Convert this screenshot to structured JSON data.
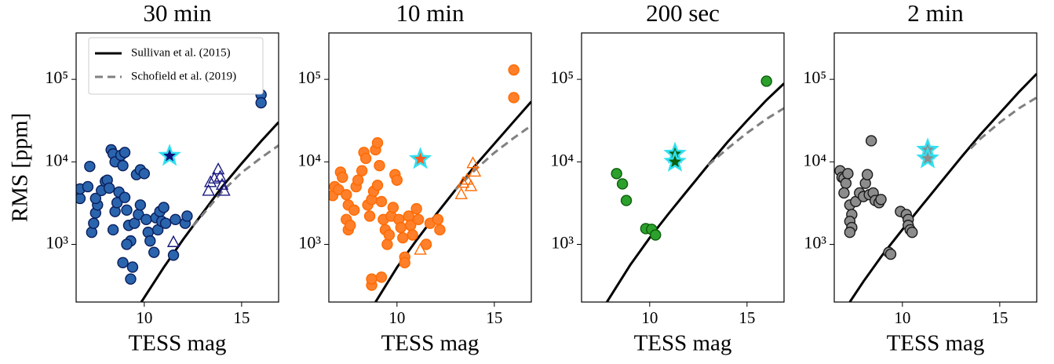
{
  "chart_data": [
    {
      "type": "scatter",
      "title": "30 min",
      "xlabel": "TESS mag",
      "ylabel": "RMS [ppm]",
      "xlim": [
        6.5,
        16.9
      ],
      "ylim": [
        200,
        365000
      ],
      "log_y": true,
      "xticks": [
        10,
        15
      ],
      "yticks": [
        {
          "value": 1000,
          "label": "10³"
        },
        {
          "value": 10000,
          "label": "10⁴"
        },
        {
          "value": 100000,
          "label": "10⁵"
        }
      ],
      "legend": "upper left",
      "series": [
        {
          "name": "Sullivan et al. (2015)",
          "type": "line",
          "color": "#000000",
          "dashed": false,
          "x": [
            9.85,
            11,
            12,
            13,
            14,
            15,
            16,
            16.9
          ],
          "values": [
            200,
            525,
            1150,
            2400,
            5000,
            9550,
            17800,
            30200
          ]
        },
        {
          "name": "Schofield et al. (2019)",
          "type": "line",
          "color": "#808080",
          "dashed": true,
          "x": [
            12.5,
            13,
            14,
            15,
            16,
            16.9
          ],
          "values": [
            1660,
            2290,
            4370,
            7410,
            11200,
            15800
          ]
        },
        {
          "type": "scatter",
          "marker": "circle",
          "color": "#2a64ad",
          "edge": "#0a1e5c",
          "x": [
            6.7,
            6.7,
            7.1,
            7.2,
            7.3,
            7.4,
            7.5,
            7.6,
            7.5,
            7.8,
            8.0,
            8.1,
            8.2,
            8.3,
            8.4,
            8.5,
            8.5,
            8.4,
            8.6,
            8.7,
            8.8,
            8.9,
            9.0,
            9.0,
            9.1,
            9.2,
            9.3,
            9.4,
            9.3,
            8.9,
            9.1,
            9.5,
            9.7,
            9.8,
            9.6,
            9.8,
            10.0,
            10.1,
            10.2,
            10.3,
            10.5,
            10.6,
            10.7,
            10.8,
            10.9,
            11.0,
            11.1,
            11.5,
            11.6,
            12.1,
            12.2,
            16.0,
            16.0
          ],
          "values": [
            3600,
            4700,
            5000,
            8800,
            1400,
            1800,
            2400,
            3000,
            3600,
            4500,
            5800,
            6000,
            4800,
            14000,
            12500,
            10000,
            2500,
            1500,
            3200,
            4300,
            12000,
            9000,
            13000,
            3700,
            2600,
            1700,
            1100,
            530,
            380,
            600,
            1000,
            1800,
            2300,
            3000,
            7000,
            8000,
            7200,
            2000,
            1400,
            1100,
            800,
            2100,
            1500,
            2500,
            1900,
            2800,
            1800,
            740,
            2000,
            1800,
            2200,
            65000,
            52000
          ]
        },
        {
          "type": "scatter",
          "marker": "triangle",
          "color": "none",
          "edge": "#1a1a80",
          "x": [
            11.5,
            13.3,
            13.4,
            13.8,
            13.9,
            14.0,
            14.1,
            13.6
          ],
          "values": [
            1050,
            4400,
            5600,
            8000,
            6500,
            5200,
            4400,
            6200
          ]
        },
        {
          "type": "scatter",
          "marker": "star",
          "color": "#10107a",
          "edge": "#30e0f0",
          "x": [
            11.3
          ],
          "values": [
            11800
          ]
        }
      ]
    },
    {
      "type": "scatter",
      "title": "10 min",
      "xlabel": "TESS mag",
      "xlim": [
        6.5,
        16.9
      ],
      "ylim": [
        200,
        365000
      ],
      "log_y": true,
      "xticks": [
        10,
        15
      ],
      "yticks": [
        {
          "value": 1000,
          "label": "10³"
        },
        {
          "value": 10000,
          "label": "10⁴"
        },
        {
          "value": 100000,
          "label": "10⁵"
        }
      ],
      "series": [
        {
          "type": "line",
          "color": "#000000",
          "dashed": false,
          "x": [
            8.9,
            10,
            11,
            12,
            13,
            14,
            15,
            16,
            16.9
          ],
          "values": [
            200,
            525,
            1120,
            2290,
            4570,
            8910,
            16600,
            30900,
            53700
          ]
        },
        {
          "type": "line",
          "color": "#808080",
          "dashed": true,
          "x": [
            13,
            14,
            15,
            16,
            16.9
          ],
          "values": [
            4570,
            7940,
            12900,
            19500,
            27500
          ]
        },
        {
          "type": "scatter",
          "marker": "circle",
          "color": "#ff7f2a",
          "edge": "#ff6a00",
          "x": [
            6.7,
            6.8,
            7.0,
            7.1,
            7.2,
            7.4,
            7.5,
            7.4,
            7.5,
            7.6,
            7.8,
            7.9,
            8.0,
            8.2,
            8.3,
            8.4,
            8.5,
            8.6,
            8.7,
            8.8,
            8.9,
            9.0,
            9.1,
            9.0,
            9.2,
            9.3,
            9.4,
            8.7,
            8.7,
            9.2,
            9.5,
            9.6,
            9.7,
            9.8,
            9.9,
            10.0,
            10.1,
            10.2,
            10.3,
            10.4,
            10.4,
            10.6,
            10.7,
            10.8,
            11.0,
            11.1,
            11.5,
            11.7,
            12.1,
            12.2,
            16.0,
            16.0
          ],
          "values": [
            3900,
            5000,
            4600,
            7500,
            6500,
            4000,
            3000,
            2000,
            1500,
            1700,
            2600,
            5000,
            6000,
            7800,
            13000,
            11000,
            3000,
            2200,
            3500,
            4400,
            14000,
            17000,
            9000,
            5200,
            3300,
            2000,
            1500,
            320,
            380,
            400,
            1000,
            1300,
            2200,
            2800,
            7000,
            6000,
            2000,
            1600,
            1200,
            700,
            600,
            2200,
            1700,
            1300,
            2700,
            2000,
            1000,
            1800,
            2000,
            1500,
            130000,
            60000
          ]
        },
        {
          "type": "scatter",
          "marker": "triangle",
          "color": "none",
          "edge": "#ff6a00",
          "x": [
            11.2,
            13.3,
            13.4,
            13.8,
            13.9,
            14.0,
            13.6
          ],
          "values": [
            850,
            4000,
            5500,
            5000,
            9500,
            7500,
            6000
          ]
        },
        {
          "type": "scatter",
          "marker": "star",
          "color": "#ff5a1f",
          "edge": "#30e0f0",
          "x": [
            11.2
          ],
          "values": [
            10800
          ]
        }
      ]
    },
    {
      "type": "scatter",
      "title": "200 sec",
      "xlabel": "TESS mag",
      "xlim": [
        6.5,
        16.9
      ],
      "ylim": [
        200,
        365000
      ],
      "log_y": true,
      "xticks": [
        10,
        15
      ],
      "yticks": [
        {
          "value": 1000,
          "label": "10³"
        },
        {
          "value": 10000,
          "label": "10⁴"
        },
        {
          "value": 100000,
          "label": "10⁵"
        }
      ],
      "series": [
        {
          "type": "line",
          "color": "#000000",
          "dashed": false,
          "x": [
            7.8,
            9,
            10,
            11,
            12,
            13,
            14,
            15,
            16,
            16.9
          ],
          "values": [
            200,
            562,
            1200,
            2400,
            4680,
            9120,
            17400,
            31600,
            56200,
            89100
          ]
        },
        {
          "type": "line",
          "color": "#808080",
          "dashed": true,
          "x": [
            13,
            14,
            15,
            16,
            16.9
          ],
          "values": [
            9120,
            14500,
            22400,
            33100,
            44700
          ]
        },
        {
          "type": "scatter",
          "marker": "circle",
          "color": "#2ca02c",
          "edge": "#0b5e0b",
          "x": [
            8.3,
            8.6,
            8.8,
            9.8,
            10.1,
            10.3,
            16.0
          ],
          "values": [
            7200,
            5400,
            3400,
            1550,
            1520,
            1300,
            95000
          ]
        },
        {
          "type": "scatter",
          "marker": "star",
          "color": "#0d5e0d",
          "edge": "#30e0f0",
          "x": [
            11.3,
            11.3
          ],
          "values": [
            12500,
            10000
          ]
        }
      ]
    },
    {
      "type": "scatter",
      "title": "2 min",
      "xlabel": "TESS mag",
      "xlim": [
        6.5,
        16.9
      ],
      "ylim": [
        200,
        365000
      ],
      "log_y": true,
      "xticks": [
        10,
        15
      ],
      "yticks": [
        {
          "value": 1000,
          "label": "10³"
        },
        {
          "value": 10000,
          "label": "10⁴"
        },
        {
          "value": 100000,
          "label": "10⁵"
        }
      ],
      "series": [
        {
          "type": "line",
          "color": "#000000",
          "dashed": false,
          "x": [
            7.3,
            8,
            9,
            10,
            11,
            12,
            13,
            14,
            15,
            16,
            16.9
          ],
          "values": [
            200,
            355,
            759,
            1510,
            2950,
            5750,
            11200,
            21400,
            38900,
            70800,
            117000
          ]
        },
        {
          "type": "line",
          "color": "#808080",
          "dashed": true,
          "x": [
            13.5,
            14,
            15,
            16,
            16.9
          ],
          "values": [
            14500,
            19000,
            30000,
            44700,
            60300
          ]
        },
        {
          "type": "scatter",
          "marker": "circle",
          "color": "#8c8c8c",
          "edge": "#1a1a1a",
          "x": [
            6.8,
            6.9,
            7.0,
            7.1,
            7.0,
            7.2,
            7.3,
            7.4,
            7.3,
            7.4,
            7.3,
            7.6,
            7.8,
            8.0,
            8.1,
            8.2,
            8.3,
            8.4,
            8.5,
            8.6,
            8.8,
            8.9,
            9.3,
            9.4,
            9.9,
            10.2,
            10.3,
            10.3,
            10.4,
            10.5
          ],
          "values": [
            7800,
            6500,
            6300,
            5500,
            4200,
            7200,
            3000,
            2300,
            1900,
            1600,
            1400,
            3300,
            4200,
            3800,
            5500,
            7000,
            4000,
            18000,
            4200,
            3400,
            3200,
            3500,
            800,
            760,
            2500,
            2300,
            2000,
            1700,
            1500,
            1400
          ]
        },
        {
          "type": "scatter",
          "marker": "star",
          "color": "#8c8c8c",
          "edge": "#30e0f0",
          "x": [
            11.3,
            11.3
          ],
          "values": [
            14000,
            11000
          ]
        }
      ]
    }
  ]
}
